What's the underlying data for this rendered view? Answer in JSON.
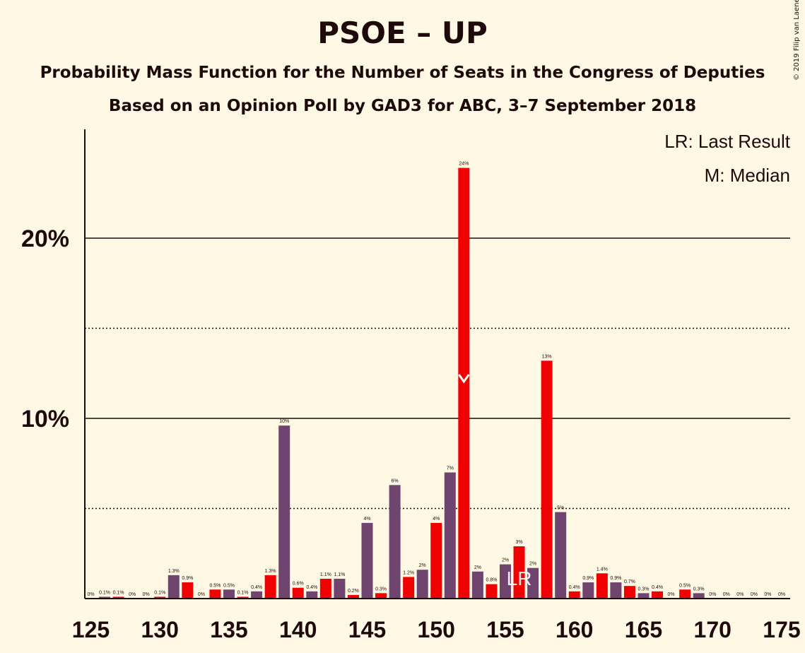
{
  "header": {
    "title": "PSOE – UP",
    "subtitle1": "Probability Mass Function for the Number of Seats in the Congress of Deputies",
    "subtitle2": "Based on an Opinion Poll by GAD3 for ABC, 3–7 September 2018",
    "copyright": "© 2019 Filip van Laenen"
  },
  "legend": {
    "last_result": "LR: Last Result",
    "median": "M: Median"
  },
  "colors": {
    "background": "#FFF8E4",
    "purple": "#6F4570",
    "red": "#F00000",
    "text": "#1E0A0A"
  },
  "chart_data": {
    "type": "bar",
    "x": [
      125,
      126,
      127,
      128,
      129,
      130,
      131,
      132,
      133,
      134,
      135,
      136,
      137,
      138,
      139,
      140,
      141,
      142,
      143,
      144,
      145,
      146,
      147,
      148,
      149,
      150,
      151,
      152,
      153,
      154,
      155,
      156,
      157,
      158,
      159,
      160,
      161,
      162,
      163,
      164,
      165,
      166,
      167,
      168,
      169,
      170,
      171,
      172,
      173,
      174,
      175
    ],
    "values": [
      0,
      0.1,
      0.1,
      0,
      0,
      0.1,
      1.3,
      0.9,
      0,
      0.5,
      0.5,
      0.1,
      0.4,
      1.3,
      9.6,
      0.6,
      0.4,
      1.1,
      1.1,
      0.2,
      4.2,
      0.3,
      6.3,
      1.2,
      1.6,
      4.2,
      7.0,
      23.9,
      1.5,
      0.8,
      1.9,
      2.9,
      1.7,
      13.2,
      4.8,
      0.4,
      0.9,
      1.4,
      0.9,
      0.7,
      0.3,
      0.4,
      0,
      0.5,
      0.3,
      0,
      0,
      0,
      0,
      0,
      0
    ],
    "labels": [
      "0%",
      "0.1%",
      "0.1%",
      "0%",
      "0%",
      "0.1%",
      "1.3%",
      "0.9%",
      "0%",
      "0.5%",
      "0.5%",
      "0.1%",
      "0.4%",
      "1.3%",
      "10%",
      "0.6%",
      "0.4%",
      "1.1%",
      "1.1%",
      "0.2%",
      "4%",
      "0.3%",
      "6%",
      "1.2%",
      "2%",
      "4%",
      "7%",
      "24%",
      "2%",
      "0.8%",
      "2%",
      "3%",
      "2%",
      "13%",
      "5%",
      "0.4%",
      "0.9%",
      "1.4%",
      "0.9%",
      "0.7%",
      "0.3%",
      "0.4%",
      "0%",
      "0.5%",
      "0.3%",
      "0%",
      "0%",
      "0%",
      "0%",
      "0%",
      "0%"
    ],
    "colors": [
      "red",
      "purple",
      "red",
      "purple",
      "red",
      "red",
      "purple",
      "red",
      "purple",
      "red",
      "purple",
      "red",
      "purple",
      "red",
      "purple",
      "red",
      "purple",
      "red",
      "purple",
      "red",
      "purple",
      "red",
      "purple",
      "red",
      "purple",
      "red",
      "purple",
      "red",
      "purple",
      "red",
      "purple",
      "red",
      "purple",
      "red",
      "purple",
      "red",
      "purple",
      "red",
      "purple",
      "red",
      "purple",
      "red",
      "purple",
      "red",
      "purple",
      "red",
      "purple",
      "red",
      "purple",
      "red",
      "purple"
    ],
    "x_ticks": [
      "125",
      "130",
      "135",
      "140",
      "145",
      "150",
      "155",
      "160",
      "165",
      "170",
      "175"
    ],
    "y_ticks": [
      "10%",
      "20%"
    ],
    "ylim": [
      0,
      26
    ],
    "solid_gridlines": [
      10,
      20
    ],
    "dotted_gridlines": [
      5,
      15
    ],
    "median": 152,
    "median_marker": "M",
    "last_result": 156,
    "last_result_marker": "LR"
  }
}
